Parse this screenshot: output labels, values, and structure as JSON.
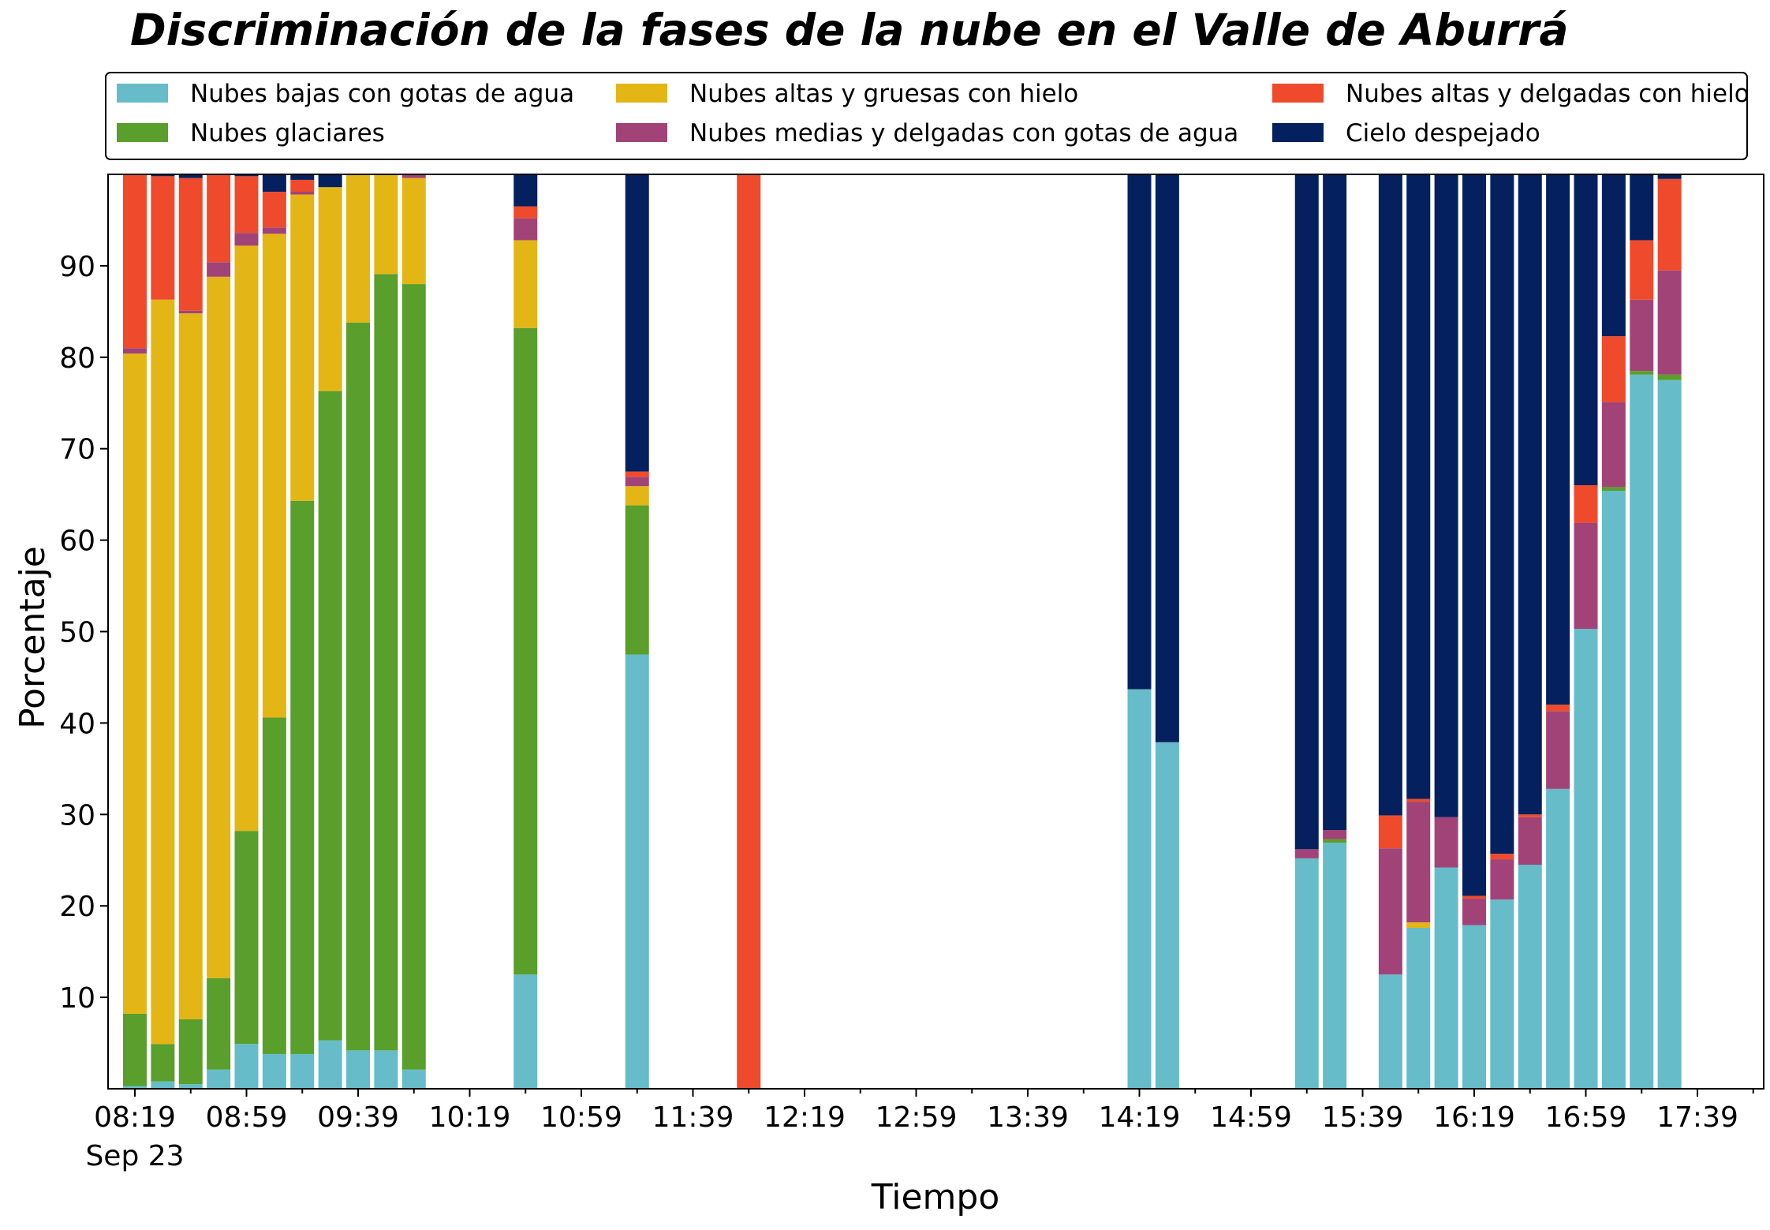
{
  "chart_data": {
    "type": "bar",
    "stacked": true,
    "title": "Discriminación de la fases de la nube en el Valle de Aburrá",
    "xlabel": "Tiempo",
    "ylabel": "Porcentaje",
    "ylim": [
      0,
      100
    ],
    "yticks": [
      10,
      20,
      30,
      40,
      50,
      60,
      70,
      80,
      90
    ],
    "xticks": [
      "08:19",
      "08:59",
      "09:39",
      "10:19",
      "10:59",
      "11:39",
      "12:19",
      "12:59",
      "13:39",
      "14:19",
      "14:59",
      "15:39",
      "16:19",
      "16:59",
      "17:39"
    ],
    "x_date_label": "Sep 23",
    "x_interval_minutes": 10,
    "x": [
      "08:19",
      "08:29",
      "08:39",
      "08:49",
      "08:59",
      "09:09",
      "09:19",
      "09:29",
      "09:39",
      "09:49",
      "09:59",
      "10:39",
      "11:19",
      "11:59",
      "14:19",
      "14:29",
      "15:19",
      "15:29",
      "15:49",
      "15:59",
      "16:09",
      "16:19",
      "16:29",
      "16:39",
      "16:49",
      "16:59",
      "17:09",
      "17:19",
      "17:29"
    ],
    "grid": false,
    "legend_position": "top",
    "series": [
      {
        "name": "Nubes bajas con gotas de agua",
        "color": "#66bcc8",
        "values": [
          0.3,
          0.8,
          0.5,
          2.1,
          4.9,
          3.8,
          3.8,
          5.3,
          4.2,
          4.2,
          2.1,
          12.5,
          47.5,
          0,
          43.7,
          37.9,
          25.2,
          26.9,
          12.5,
          17.6,
          24.2,
          17.9,
          20.7,
          24.5,
          32.8,
          50.3,
          65.4,
          78.1,
          77.5
        ]
      },
      {
        "name": "Nubes glaciares",
        "color": "#5a9e2b",
        "values": [
          7.9,
          4.1,
          7.1,
          10.0,
          23.3,
          36.8,
          60.5,
          71.0,
          79.6,
          84.9,
          85.9,
          70.7,
          16.3,
          0,
          0,
          0,
          0,
          0.4,
          0,
          0,
          0,
          0,
          0,
          0,
          0,
          0,
          0.4,
          0.4,
          0.6
        ]
      },
      {
        "name": "Nubes altas y gruesas con hielo",
        "color": "#e3b615",
        "values": [
          72.2,
          81.4,
          77.2,
          76.7,
          64.0,
          52.9,
          33.5,
          22.3,
          16.4,
          11.0,
          11.6,
          9.6,
          2.1,
          0,
          0,
          0,
          0,
          0,
          0,
          0.6,
          0,
          0,
          0,
          0,
          0,
          0,
          0,
          0,
          0
        ]
      },
      {
        "name": "Nubes medias y delgadas con gotas de agua",
        "color": "#a24377",
        "values": [
          0.6,
          0,
          0.3,
          1.6,
          1.4,
          0.7,
          0.3,
          0,
          0,
          0,
          0.4,
          2.4,
          1.0,
          0,
          0,
          0,
          1.0,
          1.0,
          13.8,
          13.2,
          5.5,
          2.9,
          4.4,
          5.2,
          8.5,
          11.6,
          9.3,
          7.8,
          11.4
        ]
      },
      {
        "name": "Nubes altas y delgadas con hielo",
        "color": "#ef4a2b",
        "values": [
          19.0,
          13.5,
          14.5,
          9.6,
          6.2,
          3.9,
          1.3,
          0,
          0,
          0,
          0,
          1.3,
          0.6,
          100,
          0,
          0,
          0,
          0,
          3.6,
          0.3,
          0,
          0.3,
          0.6,
          0.3,
          0.7,
          4.1,
          7.2,
          6.5,
          10.0
        ]
      },
      {
        "name": "Cielo despejado",
        "color": "#04205e",
        "values": [
          0,
          0.2,
          0.6,
          0,
          0.2,
          1.9,
          0.6,
          1.4,
          0,
          0,
          0,
          3.5,
          32.5,
          0,
          56.3,
          62.1,
          73.8,
          71.7,
          70.1,
          68.3,
          70.3,
          78.9,
          74.3,
          70.0,
          58.0,
          34.0,
          17.7,
          7.2,
          0.5
        ]
      }
    ]
  }
}
